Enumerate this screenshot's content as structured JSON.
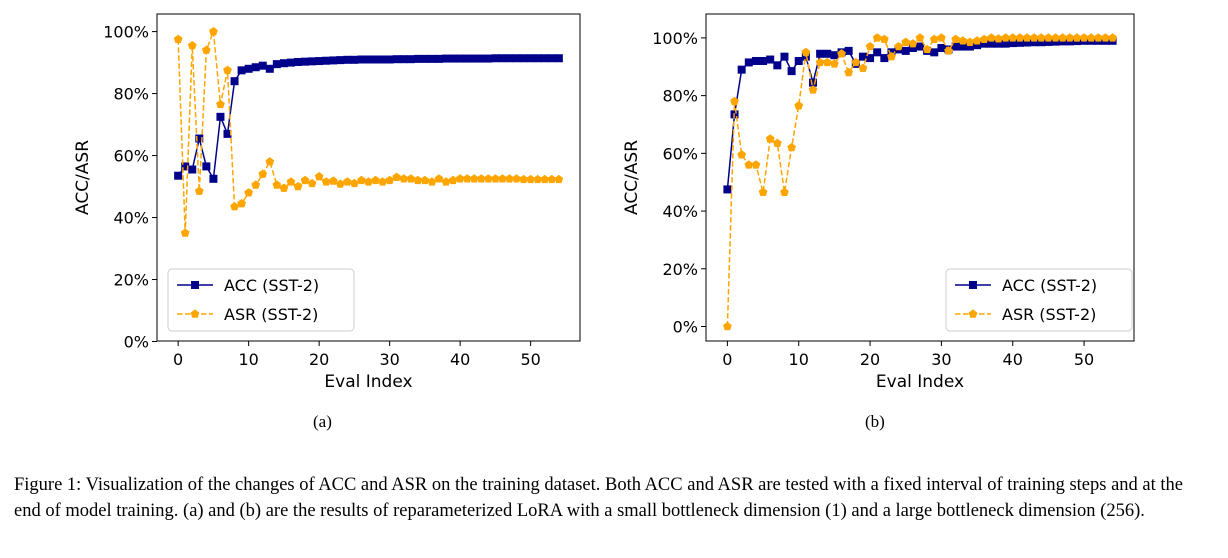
{
  "chart_data": [
    {
      "type": "line",
      "panel_label": "(a)",
      "xlabel": "Eval Index",
      "ylabel": "ACC/ASR",
      "xlim": [
        -3,
        57
      ],
      "ylim": [
        0,
        100
      ],
      "x_ticks": [
        0,
        10,
        20,
        30,
        40,
        50
      ],
      "y_ticks": [
        "0%",
        "20%",
        "40%",
        "60%",
        "80%",
        "100%"
      ],
      "grid": false,
      "legend_position": "lower-left",
      "series": [
        {
          "name": "ACC (SST-2)",
          "color": "#00008b",
          "line_style": "solid",
          "marker": "square",
          "values": [
            53.5,
            56.5,
            55.5,
            65.5,
            56.5,
            52.5,
            72.5,
            67,
            84,
            87.5,
            88,
            88.5,
            89,
            88,
            89.5,
            89.8,
            90,
            90.2,
            90.3,
            90.4,
            90.5,
            90.6,
            90.7,
            90.8,
            90.9,
            90.9,
            91,
            91,
            91,
            91,
            91,
            91.1,
            91.1,
            91.1,
            91.2,
            91.2,
            91.2,
            91.2,
            91.3,
            91.3,
            91.3,
            91.3,
            91.3,
            91.3,
            91.3,
            91.4,
            91.4,
            91.4,
            91.4,
            91.4,
            91.4,
            91.4,
            91.4,
            91.4,
            91.4
          ]
        },
        {
          "name": "ASR (SST-2)",
          "color": "#ffa500",
          "line_style": "dashed",
          "marker": "pentagon",
          "values": [
            97.5,
            35,
            95.5,
            48.5,
            94,
            100,
            76.5,
            87.5,
            43.5,
            44.5,
            48,
            50.5,
            54,
            58,
            50.5,
            49.5,
            51.5,
            50,
            52,
            51,
            53.2,
            51.5,
            51.8,
            50.8,
            51.5,
            51,
            52,
            51.5,
            52,
            51.5,
            52,
            53,
            52.5,
            52.5,
            52,
            52,
            51.5,
            52.5,
            51.5,
            52,
            52.5,
            52.5,
            52.5,
            52.5,
            52.5,
            52.5,
            52.5,
            52.5,
            52.5,
            52.3,
            52.3,
            52.3,
            52.3,
            52.3,
            52.3
          ]
        }
      ]
    },
    {
      "type": "line",
      "panel_label": "(b)",
      "xlabel": "Eval Index",
      "ylabel": "ACC/ASR",
      "xlim": [
        -3,
        57
      ],
      "ylim": [
        0,
        100
      ],
      "x_ticks": [
        0,
        10,
        20,
        30,
        40,
        50
      ],
      "y_ticks": [
        "0%",
        "20%",
        "40%",
        "60%",
        "80%",
        "100%"
      ],
      "grid": false,
      "legend_position": "lower-right",
      "series": [
        {
          "name": "ACC (SST-2)",
          "color": "#00008b",
          "line_style": "solid",
          "marker": "square",
          "values": [
            47.5,
            73.5,
            89,
            91.5,
            92,
            92,
            92.5,
            90.5,
            93.5,
            88.5,
            92,
            93.5,
            84.5,
            94.5,
            94.5,
            94,
            95,
            95.5,
            91,
            93.5,
            93,
            95,
            93,
            95,
            96,
            95.5,
            96.5,
            97,
            95.5,
            95,
            96.5,
            96,
            97,
            97,
            97,
            97.5,
            98,
            98,
            98,
            98,
            98.2,
            98.3,
            98.4,
            98.5,
            98.5,
            98.6,
            98.7,
            98.8,
            98.8,
            98.9,
            99,
            99,
            99,
            99,
            99
          ]
        },
        {
          "name": "ASR (SST-2)",
          "color": "#ffa500",
          "line_style": "dashed",
          "marker": "pentagon",
          "values": [
            0,
            78,
            59.5,
            56,
            56,
            46.5,
            65,
            63.5,
            46.5,
            62,
            76.5,
            95,
            82,
            91.5,
            91.5,
            91,
            94.5,
            88,
            91.5,
            89.5,
            97,
            100,
            99.5,
            93.5,
            97,
            98.5,
            98,
            100,
            96,
            99.5,
            100,
            95.5,
            99.5,
            99,
            98.5,
            99,
            99.5,
            100,
            99.7,
            100,
            100,
            100,
            100,
            100,
            100,
            100,
            100,
            100,
            100,
            100,
            100,
            100,
            100,
            100,
            100
          ]
        }
      ]
    }
  ],
  "caption": {
    "label": "Figure 1:",
    "text": "Visualization of the changes of ACC and ASR on the training dataset. Both ACC and ASR are tested with a fixed interval of training steps and at the end of model training. (a) and (b) are the results of reparameterized LoRA with a small bottleneck dimension (1) and a large bottleneck dimension (256)."
  }
}
